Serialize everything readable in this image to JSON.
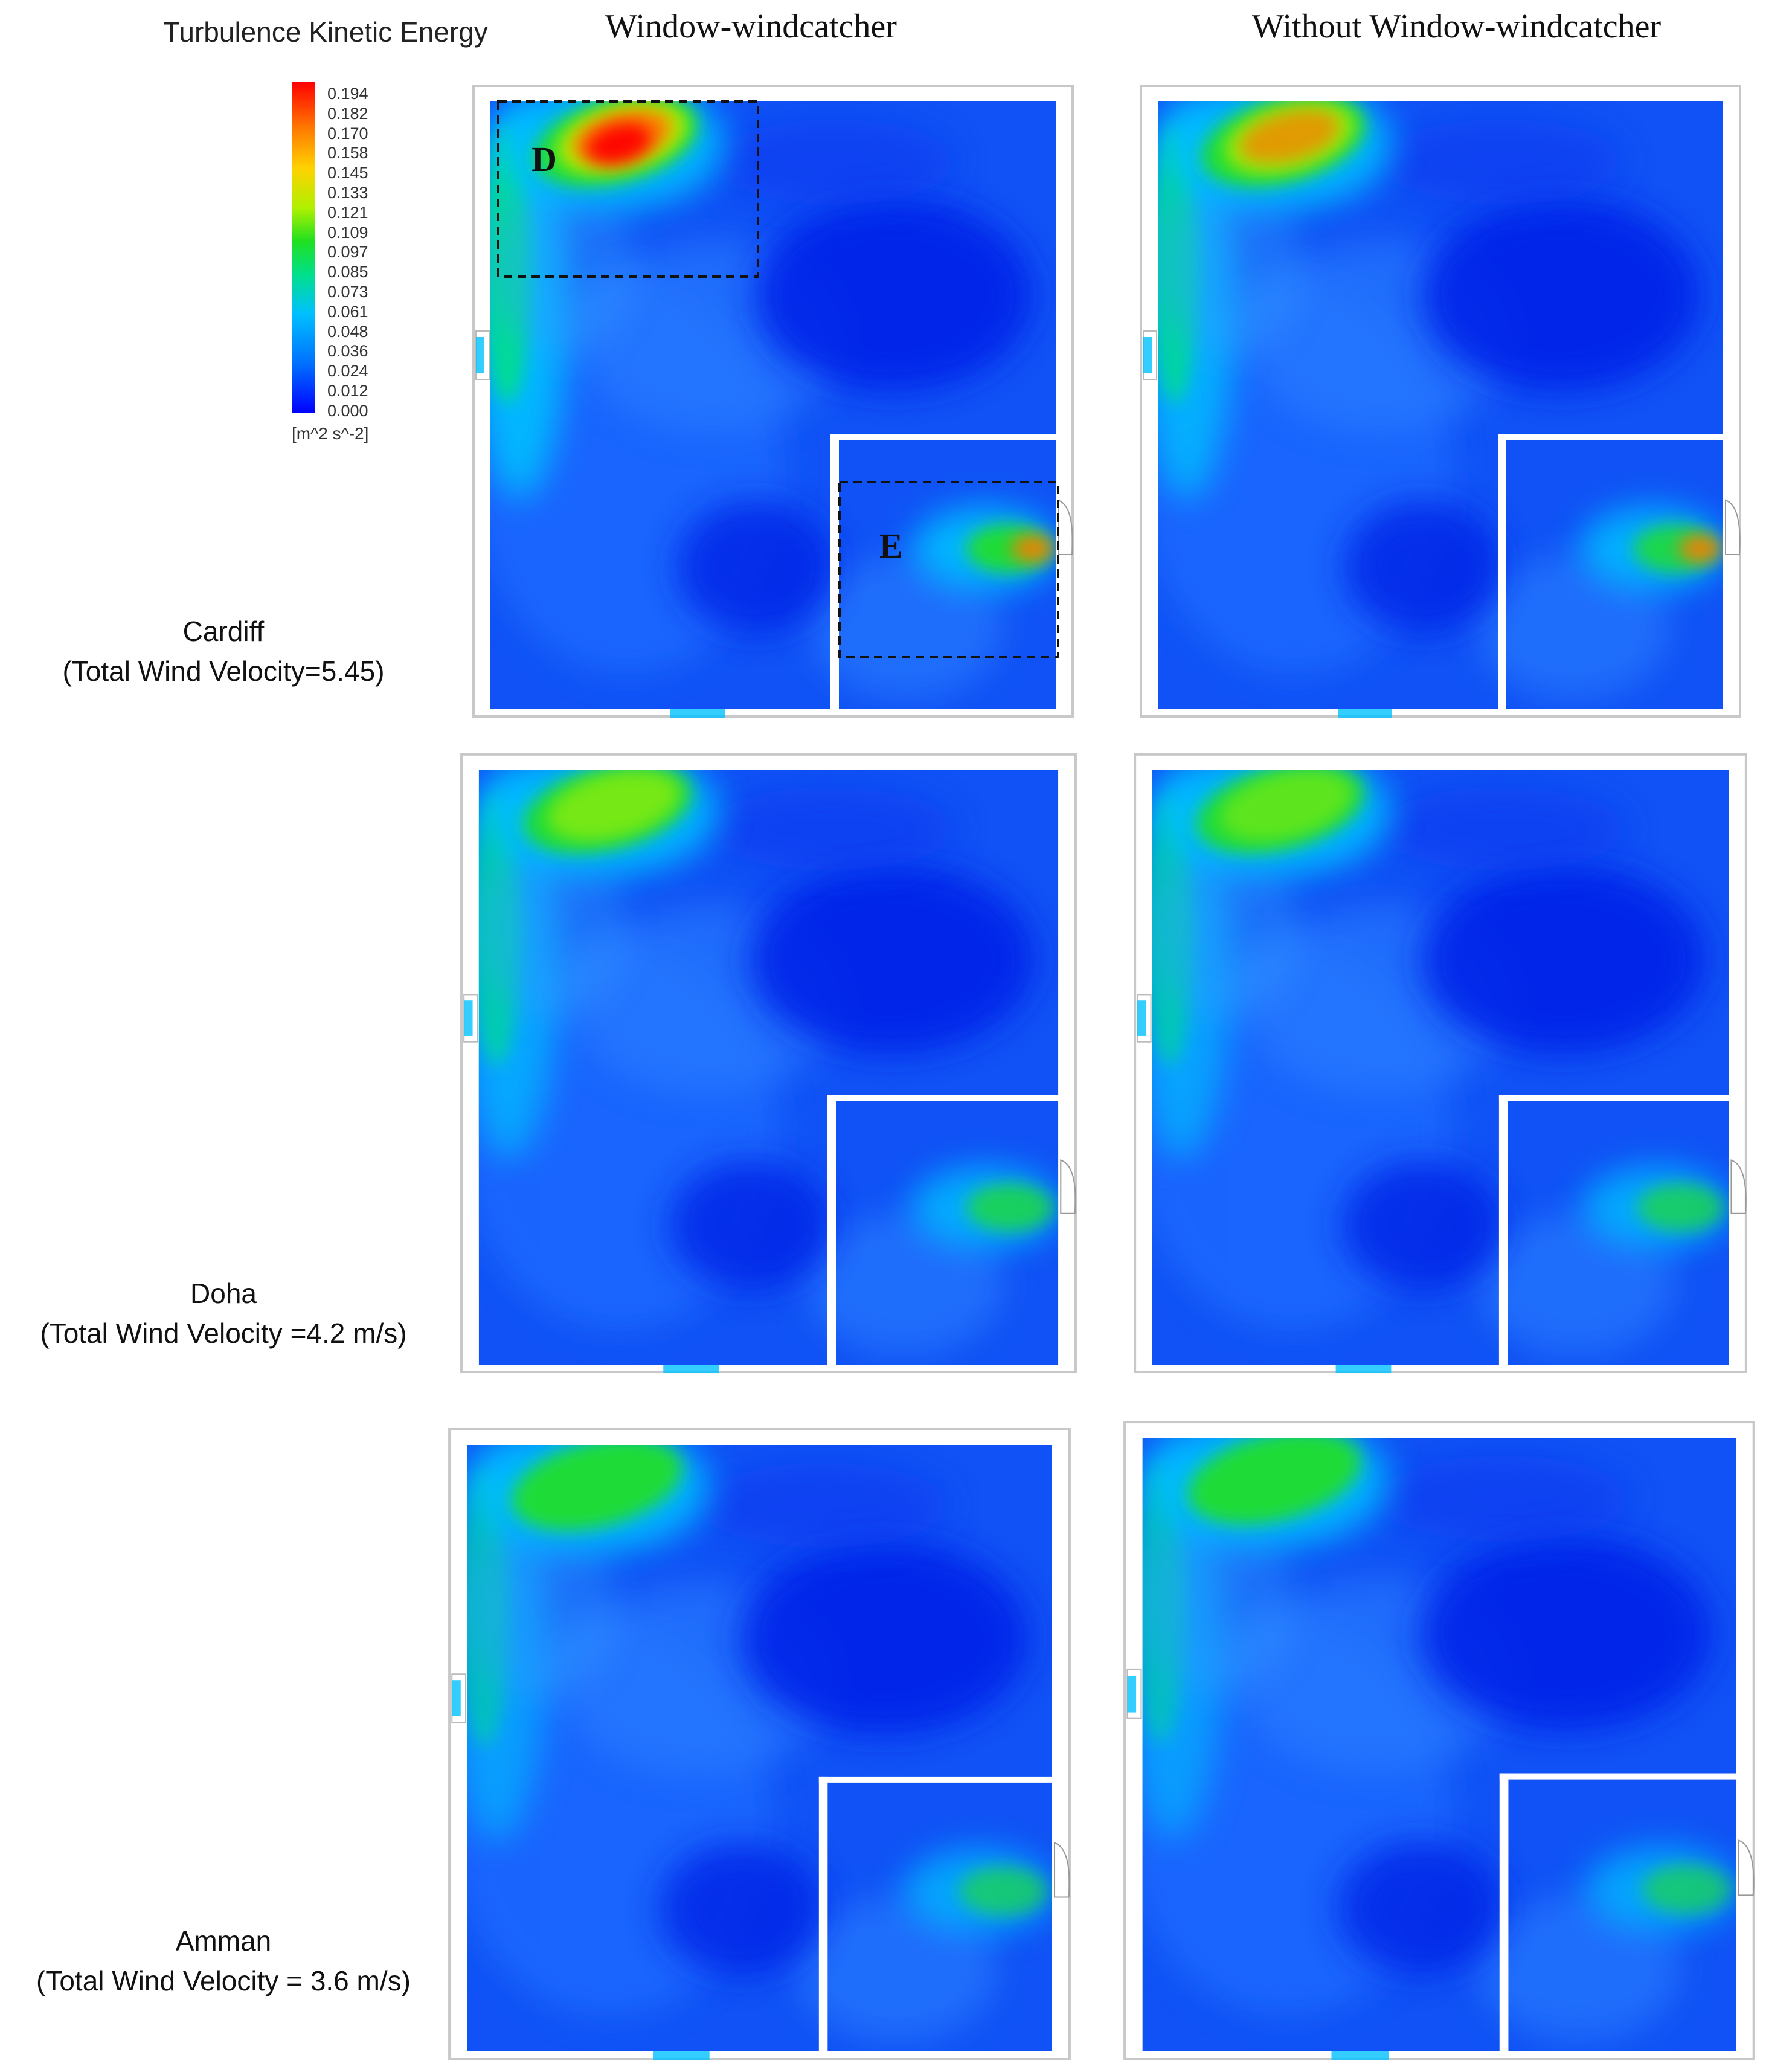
{
  "legend": {
    "title": "Turbulence Kinetic Energy",
    "ticks": [
      "0.194",
      "0.182",
      "0.170",
      "0.158",
      "0.145",
      "0.133",
      "0.121",
      "0.109",
      "0.097",
      "0.085",
      "0.073",
      "0.061",
      "0.048",
      "0.036",
      "0.024",
      "0.012",
      "0.000"
    ],
    "units": "[m^2 s^-2]",
    "colors": [
      "#0000ff",
      "#0070ff",
      "#00c0ff",
      "#00e08a",
      "#20e020",
      "#b0f000",
      "#ffd200",
      "#ff7a00",
      "#ff0000"
    ]
  },
  "columns": {
    "with": "Window-windcatcher",
    "without": "Without Window-windcatcher"
  },
  "rows": [
    {
      "city": "Cardiff",
      "velocity": "(Total Wind Velocity=5.45)"
    },
    {
      "city": "Doha",
      "velocity": "(Total Wind Velocity =4.2 m/s)"
    },
    {
      "city": "Amman",
      "velocity": "(Total Wind Velocity = 3.6 m/s)"
    }
  ],
  "markers": {
    "d": "D",
    "e": "E"
  }
}
